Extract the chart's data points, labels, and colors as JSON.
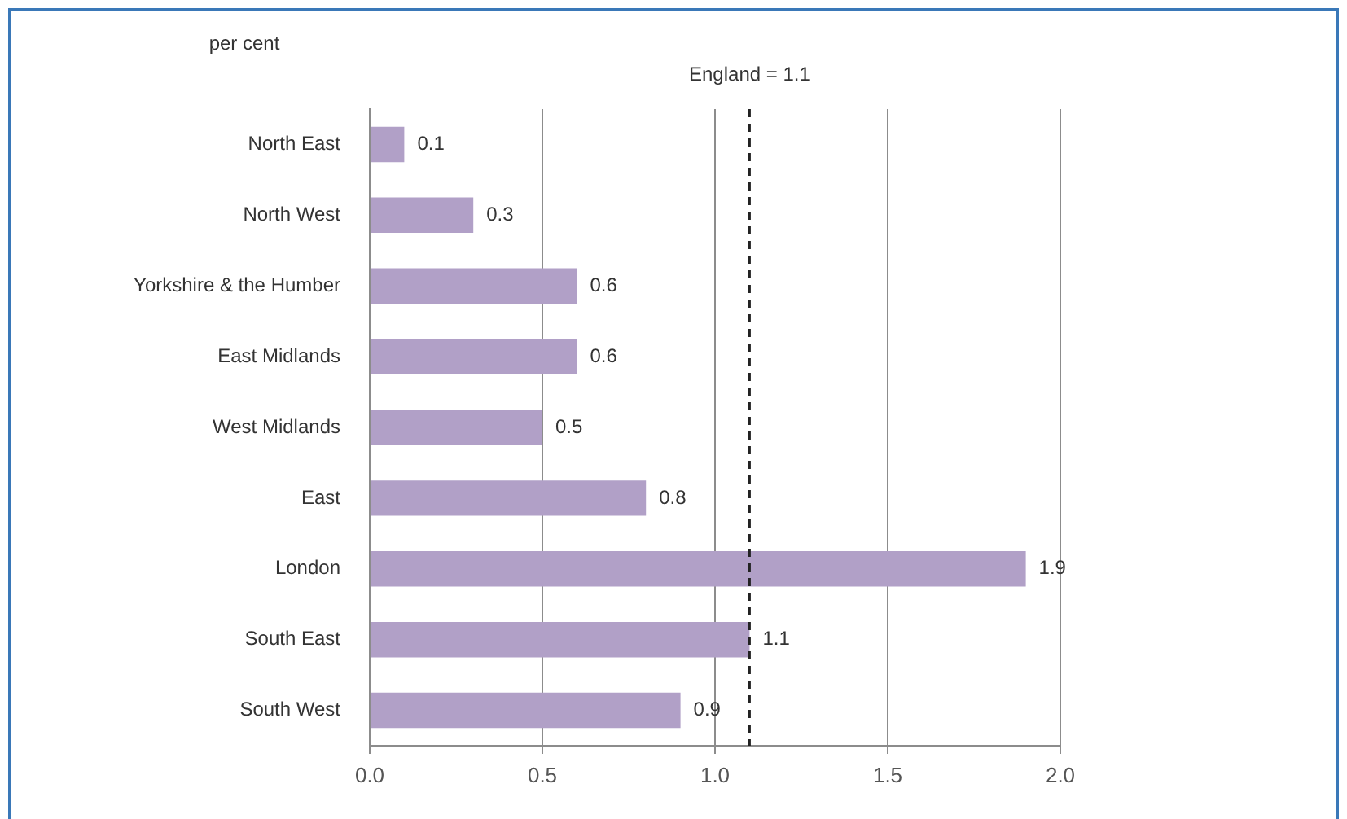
{
  "chart_data": {
    "type": "bar",
    "orientation": "horizontal",
    "xlabel": "per cent",
    "categories": [
      "North East",
      "North West",
      "Yorkshire & the Humber",
      "East Midlands",
      "West Midlands",
      "East",
      "London",
      "South East",
      "South West"
    ],
    "values": [
      0.1,
      0.3,
      0.6,
      0.6,
      0.5,
      0.8,
      1.9,
      1.1,
      0.9
    ],
    "color": "#b1a0c7",
    "xlim": [
      0,
      2
    ],
    "xticks": [
      {
        "value": 0,
        "label": "0.0"
      },
      {
        "value": 0.5,
        "label": "0.5"
      },
      {
        "value": 1,
        "label": "1.0"
      },
      {
        "value": 1.5,
        "label": "1.5"
      },
      {
        "value": 2,
        "label": "2.0"
      }
    ],
    "grid": "x",
    "data_labels": true,
    "ref_lines": [
      {
        "axis": "x",
        "value": 1.1,
        "label": "England = 1.1",
        "color": "#222222",
        "line_style": "dashed"
      }
    ]
  }
}
